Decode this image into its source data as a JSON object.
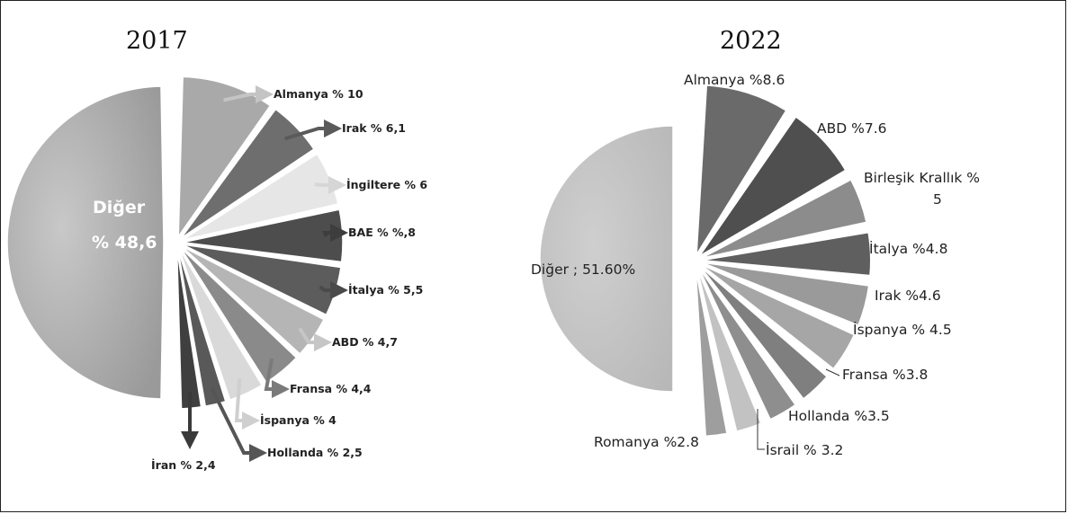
{
  "chart_data": [
    {
      "type": "pie",
      "title": "2017",
      "other_label": [
        "Diğer",
        "% 48,6"
      ],
      "other_value": 48.6,
      "slices": [
        {
          "label": "Almanya % 10",
          "value": 10,
          "color": "#a9a9a9",
          "arrow": "#c4c4c4"
        },
        {
          "label": "Irak % 6,1",
          "value": 6.1,
          "color": "#6e6e6e",
          "arrow": "#5a5a5a"
        },
        {
          "label": "İngiltere % 6",
          "value": 6,
          "color": "#e6e6e6",
          "arrow": "#d6d6d6"
        },
        {
          "label": "BAE % %,8",
          "value": 5.8,
          "color": "#4d4d4d",
          "arrow": "#3d3d3d"
        },
        {
          "label": "İtalya % 5,5",
          "value": 5.5,
          "color": "#5c5c5c",
          "arrow": "#4a4a4a"
        },
        {
          "label": "ABD % 4,7",
          "value": 4.7,
          "color": "#b5b5b5",
          "arrow": "#c6c6c6"
        },
        {
          "label": "Fransa % 4,4",
          "value": 4.4,
          "color": "#8a8a8a",
          "arrow": "#7a7a7a"
        },
        {
          "label": "İspanya % 4",
          "value": 4,
          "color": "#d9d9d9",
          "arrow": "#cfcfcf"
        },
        {
          "label": "Hollanda % 2,5",
          "value": 2.5,
          "color": "#595959",
          "arrow": "#555555"
        },
        {
          "label": "İran % 2,4",
          "value": 2.4,
          "color": "#3f3f3f",
          "arrow": "#3a3a3a"
        }
      ]
    },
    {
      "type": "pie",
      "title": "2022",
      "other_label": "Diğer ; 51.60%",
      "other_value": 51.6,
      "slices": [
        {
          "label": "Almanya %8.6",
          "value": 8.6,
          "color": "#6a6a6a"
        },
        {
          "label": "ABD %7.6",
          "value": 7.6,
          "color": "#4f4f4f"
        },
        {
          "label": "Birleşik Krallık % 5",
          "value": 5,
          "color": "#8c8c8c"
        },
        {
          "label": "İtalya %4.8",
          "value": 4.8,
          "color": "#5f5f5f"
        },
        {
          "label": "Irak %4.6",
          "value": 4.6,
          "color": "#9a9a9a"
        },
        {
          "label": "İspanya % 4.5",
          "value": 4.5,
          "color": "#a6a6a6"
        },
        {
          "label": "Fransa %3.8",
          "value": 3.8,
          "color": "#7f7f7f"
        },
        {
          "label": "Hollanda %3.5",
          "value": 3.5,
          "color": "#8e8e8e"
        },
        {
          "label": "İsrail % 3.2",
          "value": 3.2,
          "color": "#c2c2c2"
        },
        {
          "label": "Romanya %2.8",
          "value": 2.8,
          "color": "#9e9e9e"
        }
      ]
    }
  ]
}
